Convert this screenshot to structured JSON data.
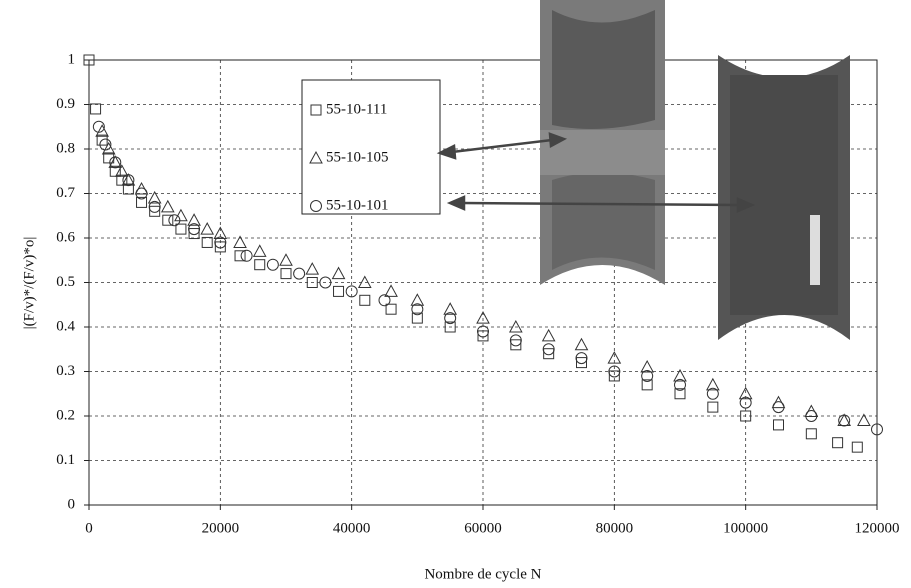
{
  "chart_data": {
    "type": "scatter",
    "x_label": "Nombre de cycle N",
    "y_label": "|(F/v)*/(F/v)*o|",
    "xlim": [
      0,
      120000
    ],
    "xticks": [
      0,
      20000,
      40000,
      60000,
      80000,
      100000,
      120000
    ],
    "ylim": [
      0,
      1
    ],
    "yticks": [
      0,
      0.1,
      0.2,
      0.3,
      0.4,
      0.5,
      0.6,
      0.7,
      0.8,
      0.9,
      1
    ],
    "grid": true,
    "series": [
      {
        "name": "55-10-111",
        "marker": "square",
        "color": "#333333",
        "x": [
          0,
          1000,
          2000,
          3000,
          4000,
          5000,
          6000,
          8000,
          10000,
          12000,
          14000,
          16000,
          18000,
          20000,
          23000,
          26000,
          30000,
          34000,
          38000,
          42000,
          46000,
          50000,
          55000,
          60000,
          65000,
          70000,
          75000,
          80000,
          85000,
          90000,
          95000,
          100000,
          105000,
          110000,
          114000,
          117000
        ],
        "values": [
          1.0,
          0.89,
          0.82,
          0.78,
          0.75,
          0.73,
          0.71,
          0.68,
          0.66,
          0.64,
          0.62,
          0.61,
          0.59,
          0.58,
          0.56,
          0.54,
          0.52,
          0.5,
          0.48,
          0.46,
          0.44,
          0.42,
          0.4,
          0.38,
          0.36,
          0.34,
          0.32,
          0.29,
          0.27,
          0.25,
          0.22,
          0.2,
          0.18,
          0.16,
          0.14,
          0.13
        ]
      },
      {
        "name": "55-10-105",
        "marker": "triangle",
        "color": "#333333",
        "x": [
          2000,
          3000,
          4000,
          5000,
          6000,
          8000,
          10000,
          12000,
          14000,
          16000,
          18000,
          20000,
          23000,
          26000,
          30000,
          34000,
          38000,
          42000,
          46000,
          50000,
          55000,
          60000,
          65000,
          70000,
          75000,
          80000,
          85000,
          90000,
          95000,
          100000,
          105000,
          110000,
          115000,
          118000
        ],
        "values": [
          0.84,
          0.8,
          0.77,
          0.75,
          0.73,
          0.71,
          0.69,
          0.67,
          0.65,
          0.64,
          0.62,
          0.61,
          0.59,
          0.57,
          0.55,
          0.53,
          0.52,
          0.5,
          0.48,
          0.46,
          0.44,
          0.42,
          0.4,
          0.38,
          0.36,
          0.33,
          0.31,
          0.29,
          0.27,
          0.25,
          0.23,
          0.21,
          0.19,
          0.19
        ]
      },
      {
        "name": "55-10-101",
        "marker": "circle",
        "color": "#333333",
        "x": [
          1500,
          2500,
          4000,
          6000,
          8000,
          10000,
          13000,
          16000,
          20000,
          24000,
          28000,
          32000,
          36000,
          40000,
          45000,
          50000,
          55000,
          60000,
          65000,
          70000,
          75000,
          80000,
          85000,
          90000,
          95000,
          100000,
          105000,
          110000,
          115000,
          120000
        ],
        "values": [
          0.85,
          0.81,
          0.77,
          0.73,
          0.7,
          0.67,
          0.64,
          0.62,
          0.59,
          0.56,
          0.54,
          0.52,
          0.5,
          0.48,
          0.46,
          0.44,
          0.42,
          0.39,
          0.37,
          0.35,
          0.33,
          0.3,
          0.29,
          0.27,
          0.25,
          0.23,
          0.22,
          0.2,
          0.19,
          0.17
        ]
      }
    ]
  }
}
